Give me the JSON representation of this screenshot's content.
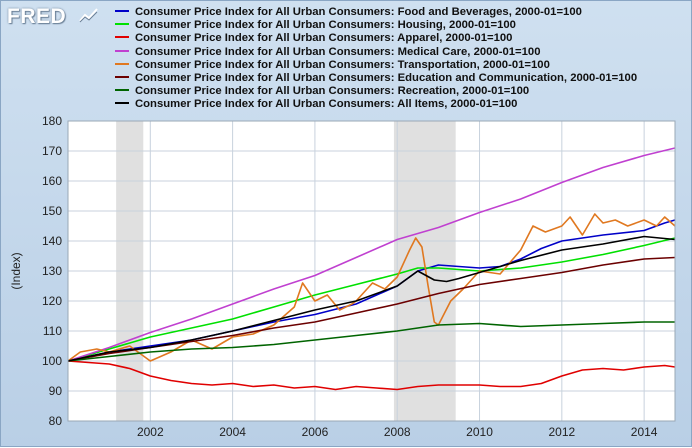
{
  "app": {
    "logo": "FRED"
  },
  "colors": {
    "frame_bg": "#c7dbef",
    "plot_bg": "#ffffff",
    "grid": "#c8d2dd",
    "recession": "#e0e0e0"
  },
  "chart_data": {
    "type": "line",
    "title": "",
    "xlabel": "",
    "ylabel": "(Index)",
    "xlim": [
      2000.0,
      2014.75
    ],
    "ylim": [
      80,
      180
    ],
    "yticks": [
      80,
      90,
      100,
      110,
      120,
      130,
      140,
      150,
      160,
      170,
      180
    ],
    "xticks": [
      2002,
      2004,
      2006,
      2008,
      2010,
      2012,
      2014
    ],
    "grid": true,
    "legend_position": "top",
    "recessions": [
      [
        2001.17,
        2001.83
      ],
      [
        2007.92,
        2009.42
      ]
    ],
    "series": [
      {
        "name": "Consumer Price Index for All Urban Consumers: Food and Beverages, 2000-01=100",
        "color": "#0000c8",
        "x": [
          2000,
          2001,
          2002,
          2003,
          2004,
          2005,
          2006,
          2007,
          2008,
          2008.5,
          2009,
          2009.5,
          2010,
          2010.5,
          2011,
          2011.5,
          2012,
          2013,
          2014,
          2014.5,
          2014.75
        ],
        "values": [
          100,
          103,
          105,
          107,
          110,
          113,
          115.5,
          119,
          125,
          130,
          132,
          131.5,
          131,
          131.5,
          134,
          137.5,
          140,
          142,
          143.5,
          146,
          147
        ]
      },
      {
        "name": "Consumer Price Index for All Urban Consumers: Housing, 2000-01=100",
        "color": "#00e000",
        "x": [
          2000,
          2001,
          2002,
          2003,
          2004,
          2005,
          2006,
          2007,
          2008,
          2008.5,
          2009,
          2009.5,
          2010,
          2011,
          2012,
          2013,
          2014,
          2014.75
        ],
        "values": [
          100,
          104,
          108,
          111,
          114,
          118,
          122,
          125.5,
          129,
          131,
          131,
          130.5,
          130,
          131,
          133,
          135.5,
          138.5,
          141
        ]
      },
      {
        "name": "Consumer Price Index for All Urban Consumers: Apparel, 2000-01=100",
        "color": "#e00000",
        "x": [
          2000,
          2000.5,
          2001,
          2001.5,
          2002,
          2002.5,
          2003,
          2003.5,
          2004,
          2004.5,
          2005,
          2005.5,
          2006,
          2006.5,
          2007,
          2007.5,
          2008,
          2008.5,
          2009,
          2009.5,
          2010,
          2010.5,
          2011,
          2011.5,
          2012,
          2012.5,
          2013,
          2013.5,
          2014,
          2014.5,
          2014.75
        ],
        "values": [
          100,
          99.5,
          99,
          97.5,
          95,
          93.5,
          92.5,
          92,
          92.5,
          91.5,
          92,
          91,
          91.5,
          90.5,
          91.5,
          91,
          90.5,
          91.5,
          92,
          92,
          92,
          91.5,
          91.5,
          92.5,
          95,
          97,
          97.5,
          97,
          98,
          98.5,
          98
        ]
      },
      {
        "name": "Consumer Price Index for All Urban Consumers: Medical Care, 2000-01=100",
        "color": "#c040d0",
        "x": [
          2000,
          2001,
          2002,
          2003,
          2004,
          2005,
          2006,
          2007,
          2008,
          2009,
          2010,
          2011,
          2012,
          2013,
          2014,
          2014.75
        ],
        "values": [
          100,
          104.5,
          109.5,
          114,
          119,
          124,
          128.5,
          134.5,
          140.5,
          144.5,
          149.5,
          154,
          159.5,
          164.5,
          168.5,
          171
        ]
      },
      {
        "name": "Consumer Price Index for All Urban Consumers: Transportation, 2000-01=100",
        "color": "#e07820",
        "x": [
          2000,
          2000.3,
          2000.7,
          2001,
          2001.5,
          2002,
          2002.5,
          2003,
          2003.5,
          2004,
          2004.5,
          2005,
          2005.5,
          2005.7,
          2006,
          2006.3,
          2006.6,
          2006.9,
          2007,
          2007.4,
          2007.7,
          2008,
          2008.3,
          2008.45,
          2008.6,
          2008.75,
          2008.9,
          2009,
          2009.3,
          2009.6,
          2010,
          2010.5,
          2011,
          2011.3,
          2011.6,
          2012,
          2012.2,
          2012.5,
          2012.8,
          2013,
          2013.3,
          2013.6,
          2014,
          2014.3,
          2014.5,
          2014.75
        ],
        "values": [
          100,
          103,
          104,
          103,
          105,
          100,
          103,
          107,
          104,
          108,
          109,
          112,
          118,
          126,
          120,
          122,
          117,
          119,
          120,
          126,
          124,
          128,
          137,
          141,
          138,
          125,
          113,
          112,
          120,
          124,
          130,
          129,
          137,
          145,
          143,
          145,
          148,
          142,
          149,
          146,
          147,
          145,
          147,
          145,
          148,
          145
        ]
      },
      {
        "name": "Consumer Price Index for All Urban Consumers: Education and Communication, 2000-01=100",
        "color": "#6b0000",
        "x": [
          2000,
          2001,
          2002,
          2003,
          2004,
          2005,
          2006,
          2007,
          2008,
          2009,
          2010,
          2011,
          2012,
          2013,
          2014,
          2014.75
        ],
        "values": [
          100,
          102.5,
          104.5,
          106.5,
          108.5,
          111,
          113,
          116,
          119,
          122.5,
          125.5,
          127.5,
          129.5,
          132,
          134,
          134.5
        ]
      },
      {
        "name": "Consumer Price Index for All Urban Consumers: Recreation, 2000-01=100",
        "color": "#006400",
        "x": [
          2000,
          2001,
          2002,
          2003,
          2004,
          2005,
          2006,
          2007,
          2008,
          2009,
          2010,
          2011,
          2012,
          2013,
          2014,
          2014.75
        ],
        "values": [
          100,
          101.5,
          103,
          104,
          104.5,
          105.5,
          107,
          108.5,
          110,
          112,
          112.5,
          111.5,
          112,
          112.5,
          113,
          113
        ]
      },
      {
        "name": "Consumer Price Index for All Urban Consumers: All Items, 2000-01=100",
        "color": "#000000",
        "x": [
          2000,
          2001,
          2002,
          2003,
          2004,
          2005,
          2006,
          2007,
          2008,
          2008.5,
          2008.9,
          2009.2,
          2009.5,
          2010,
          2011,
          2012,
          2013,
          2014,
          2014.75
        ],
        "values": [
          100,
          103,
          104.5,
          107,
          110,
          113.5,
          117,
          120,
          125,
          130,
          127,
          126.5,
          127.5,
          129.5,
          133.5,
          137,
          139,
          141.5,
          140.5
        ]
      }
    ]
  }
}
